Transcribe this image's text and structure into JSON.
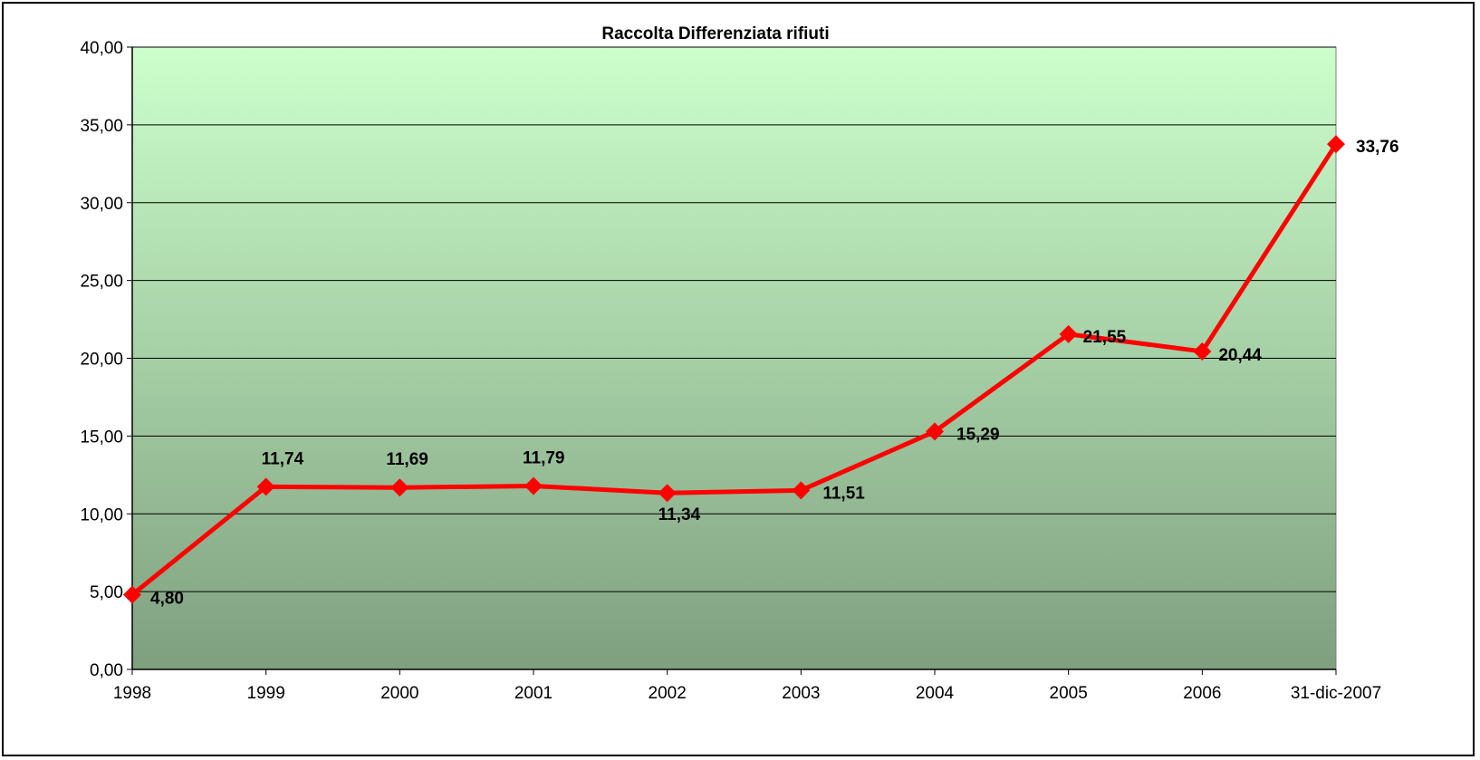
{
  "chart_data": {
    "type": "line",
    "title": "Raccolta Differenziata rifiuti",
    "xlabel": "",
    "ylabel": "",
    "categories": [
      "1998",
      "1999",
      "2000",
      "2001",
      "2002",
      "2003",
      "2004",
      "2005",
      "2006",
      "31-dic-2007"
    ],
    "series": [
      {
        "values": [
          4.8,
          11.74,
          11.69,
          11.79,
          11.34,
          11.51,
          15.29,
          21.55,
          20.44,
          33.76
        ],
        "labels": [
          "4,80",
          "11,74",
          "11,69",
          "11,79",
          "11,34",
          "11,51",
          "15,29",
          "21,55",
          "20,44",
          "33,76"
        ],
        "color": "#ff0000"
      }
    ],
    "ylim": [
      0,
      40
    ],
    "yticks": [
      0,
      5,
      10,
      15,
      20,
      25,
      30,
      35,
      40
    ],
    "ytick_labels": [
      "0,00",
      "5,00",
      "10,00",
      "15,00",
      "20,00",
      "25,00",
      "30,00",
      "35,00",
      "40,00"
    ],
    "grid": true,
    "legend": "none",
    "plot_gradient": [
      "#ccffcc",
      "#7f9f7f"
    ]
  }
}
